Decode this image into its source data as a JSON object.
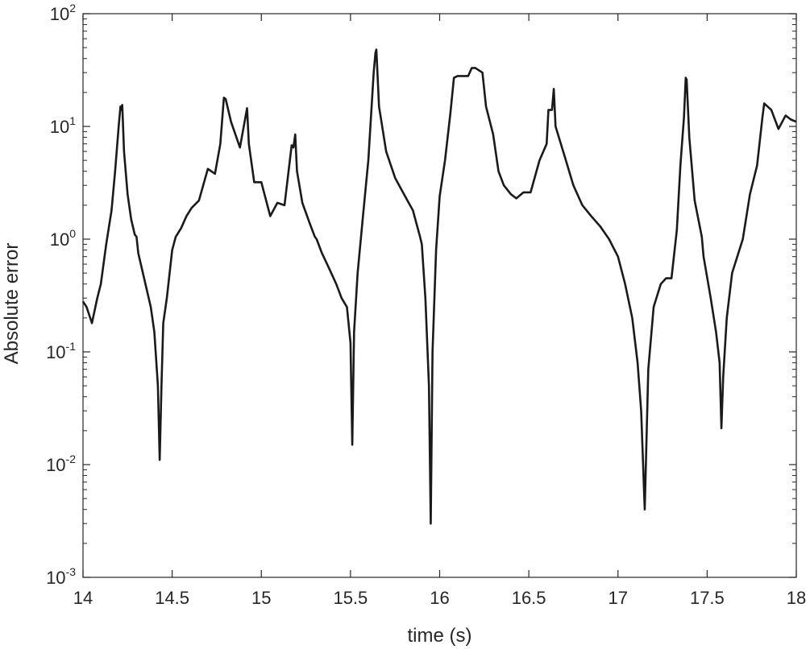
{
  "chart_data": {
    "type": "line",
    "xlabel": "time (s)",
    "ylabel": "Absolute error",
    "yscale": "log",
    "xlim": [
      14,
      18
    ],
    "ylim": [
      0.001,
      100
    ],
    "grid": false,
    "x_ticks": [
      {
        "value": 14,
        "label": "14"
      },
      {
        "value": 14.5,
        "label": "14.5"
      },
      {
        "value": 15,
        "label": "15"
      },
      {
        "value": 15.5,
        "label": "15.5"
      },
      {
        "value": 16,
        "label": "16"
      },
      {
        "value": 16.5,
        "label": "16.5"
      },
      {
        "value": 17,
        "label": "17"
      },
      {
        "value": 17.5,
        "label": "17.5"
      },
      {
        "value": 18,
        "label": "18"
      }
    ],
    "y_ticks": [
      {
        "value": 0.001,
        "base": "10",
        "exp": "-3"
      },
      {
        "value": 0.01,
        "base": "10",
        "exp": "-2"
      },
      {
        "value": 0.1,
        "base": "10",
        "exp": "-1"
      },
      {
        "value": 1,
        "base": "10",
        "exp": "0"
      },
      {
        "value": 10,
        "base": "10",
        "exp": "1"
      },
      {
        "value": 100,
        "base": "10",
        "exp": "2"
      }
    ],
    "series": [
      {
        "color": "#1a1a1a",
        "points": [
          [
            14.0,
            0.28
          ],
          [
            14.02,
            0.25
          ],
          [
            14.05,
            0.18
          ],
          [
            14.08,
            0.3
          ],
          [
            14.1,
            0.4
          ],
          [
            14.13,
            0.9
          ],
          [
            14.16,
            1.8
          ],
          [
            14.18,
            4.0
          ],
          [
            14.2,
            10
          ],
          [
            14.21,
            15
          ],
          [
            14.215,
            14
          ],
          [
            14.22,
            15.5
          ],
          [
            14.23,
            6.0
          ],
          [
            14.25,
            2.5
          ],
          [
            14.27,
            1.5
          ],
          [
            14.29,
            1.1
          ],
          [
            14.3,
            1.05
          ],
          [
            14.31,
            0.75
          ],
          [
            14.35,
            0.4
          ],
          [
            14.38,
            0.25
          ],
          [
            14.4,
            0.15
          ],
          [
            14.42,
            0.05
          ],
          [
            14.43,
            0.011
          ],
          [
            14.44,
            0.05
          ],
          [
            14.45,
            0.18
          ],
          [
            14.47,
            0.3
          ],
          [
            14.5,
            0.8
          ],
          [
            14.52,
            1.05
          ],
          [
            14.55,
            1.25
          ],
          [
            14.58,
            1.6
          ],
          [
            14.61,
            1.9
          ],
          [
            14.65,
            2.2
          ],
          [
            14.7,
            4.2
          ],
          [
            14.74,
            3.8
          ],
          [
            14.77,
            7.0
          ],
          [
            14.79,
            18
          ],
          [
            14.8,
            17.5
          ],
          [
            14.83,
            11
          ],
          [
            14.88,
            6.5
          ],
          [
            14.92,
            14.5
          ],
          [
            14.93,
            7.0
          ],
          [
            14.96,
            3.2
          ],
          [
            15.0,
            3.2
          ],
          [
            15.05,
            1.6
          ],
          [
            15.09,
            2.1
          ],
          [
            15.13,
            2.0
          ],
          [
            15.17,
            6.8
          ],
          [
            15.18,
            6.5
          ],
          [
            15.19,
            8.5
          ],
          [
            15.2,
            4.0
          ],
          [
            15.23,
            2.1
          ],
          [
            15.27,
            1.4
          ],
          [
            15.3,
            1.05
          ],
          [
            15.31,
            1.0
          ],
          [
            15.34,
            0.75
          ],
          [
            15.38,
            0.55
          ],
          [
            15.42,
            0.4
          ],
          [
            15.45,
            0.3
          ],
          [
            15.48,
            0.25
          ],
          [
            15.5,
            0.12
          ],
          [
            15.51,
            0.015
          ],
          [
            15.52,
            0.15
          ],
          [
            15.54,
            0.5
          ],
          [
            15.57,
            1.6
          ],
          [
            15.6,
            5.0
          ],
          [
            15.63,
            30
          ],
          [
            15.64,
            45
          ],
          [
            15.645,
            48
          ],
          [
            15.66,
            15
          ],
          [
            15.7,
            6.0
          ],
          [
            15.75,
            3.5
          ],
          [
            15.8,
            2.5
          ],
          [
            15.85,
            1.8
          ],
          [
            15.89,
            1.05
          ],
          [
            15.9,
            0.9
          ],
          [
            15.92,
            0.3
          ],
          [
            15.94,
            0.05
          ],
          [
            15.95,
            0.003
          ],
          [
            15.96,
            0.1
          ],
          [
            15.98,
            0.8
          ],
          [
            16.0,
            2.4
          ],
          [
            16.03,
            5.0
          ],
          [
            16.06,
            13
          ],
          [
            16.08,
            27
          ],
          [
            16.1,
            28
          ],
          [
            16.16,
            28
          ],
          [
            16.18,
            33
          ],
          [
            16.2,
            33
          ],
          [
            16.24,
            30
          ],
          [
            16.26,
            15
          ],
          [
            16.3,
            8.5
          ],
          [
            16.33,
            4.0
          ],
          [
            16.36,
            3.0
          ],
          [
            16.4,
            2.5
          ],
          [
            16.43,
            2.3
          ],
          [
            16.47,
            2.6
          ],
          [
            16.51,
            2.6
          ],
          [
            16.56,
            5.0
          ],
          [
            16.6,
            7.0
          ],
          [
            16.61,
            14
          ],
          [
            16.63,
            14
          ],
          [
            16.64,
            21.5
          ],
          [
            16.65,
            10
          ],
          [
            16.7,
            5.5
          ],
          [
            16.75,
            3.0
          ],
          [
            16.8,
            2.0
          ],
          [
            16.85,
            1.6
          ],
          [
            16.9,
            1.3
          ],
          [
            16.95,
            1.0
          ],
          [
            17.0,
            0.7
          ],
          [
            17.04,
            0.4
          ],
          [
            17.08,
            0.2
          ],
          [
            17.11,
            0.08
          ],
          [
            17.13,
            0.03
          ],
          [
            17.15,
            0.004
          ],
          [
            17.17,
            0.07
          ],
          [
            17.2,
            0.25
          ],
          [
            17.24,
            0.4
          ],
          [
            17.27,
            0.45
          ],
          [
            17.3,
            0.45
          ],
          [
            17.33,
            1.2
          ],
          [
            17.35,
            4.5
          ],
          [
            17.37,
            12
          ],
          [
            17.38,
            27
          ],
          [
            17.385,
            26
          ],
          [
            17.4,
            8.0
          ],
          [
            17.43,
            2.2
          ],
          [
            17.47,
            1.05
          ],
          [
            17.48,
            0.7
          ],
          [
            17.52,
            0.3
          ],
          [
            17.55,
            0.15
          ],
          [
            17.57,
            0.08
          ],
          [
            17.58,
            0.021
          ],
          [
            17.59,
            0.06
          ],
          [
            17.61,
            0.2
          ],
          [
            17.64,
            0.5
          ],
          [
            17.7,
            1.0
          ],
          [
            17.74,
            2.5
          ],
          [
            17.78,
            4.5
          ],
          [
            17.81,
            12
          ],
          [
            17.82,
            16
          ],
          [
            17.86,
            14
          ],
          [
            17.9,
            9.5
          ],
          [
            17.94,
            12.5
          ],
          [
            17.97,
            11.5
          ],
          [
            18.0,
            11
          ]
        ]
      }
    ]
  }
}
